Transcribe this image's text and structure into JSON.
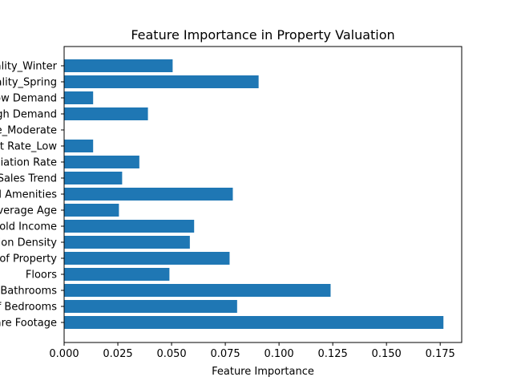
{
  "chart_data": {
    "type": "bar",
    "orientation": "horizontal",
    "title": "Feature Importance in Property Valuation",
    "xlabel": "Feature Importance",
    "ylabel": "",
    "categories": [
      "Square Footage",
      "Number of Bedrooms",
      "Number of Bathrooms",
      "Floors",
      "Age of Property",
      "Population Density",
      "Median Household Income",
      "Average Age",
      "Local Amenities",
      "Sales Trend",
      "Appreciation Rate",
      "Interest Rate_Low",
      "Interest Rate_Moderate",
      "Market High Demand",
      "Market Low Demand",
      "Seasonality_Spring",
      "Seasonality_Winter"
    ],
    "values": [
      0.1765,
      0.0805,
      0.124,
      0.049,
      0.077,
      0.0585,
      0.0605,
      0.0255,
      0.0785,
      0.027,
      0.035,
      0.0135,
      0.0,
      0.039,
      0.0135,
      0.0905,
      0.0505
    ],
    "xlim": [
      0,
      0.185
    ],
    "xticks": [
      "0.000",
      "0.025",
      "0.050",
      "0.075",
      "0.100",
      "0.125",
      "0.150",
      "0.175"
    ],
    "bar_color": "#1f77b4",
    "grid": false
  }
}
